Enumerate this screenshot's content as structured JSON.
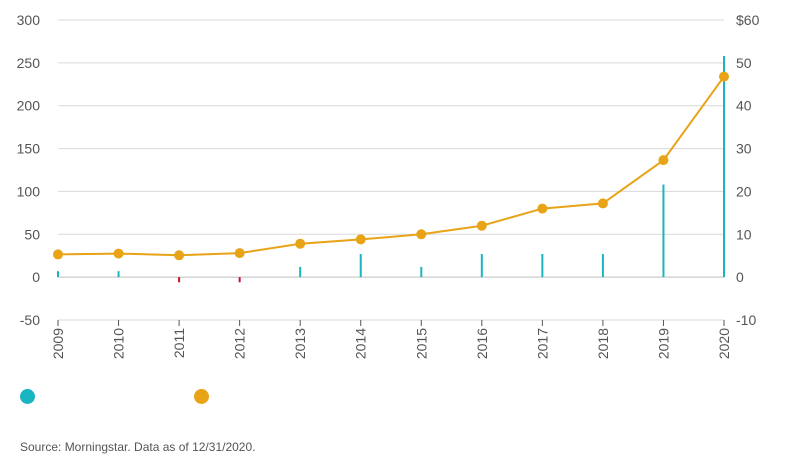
{
  "chart_data": {
    "type": "bar+line",
    "x": [
      "2009",
      "2010",
      "2011",
      "2012",
      "2013",
      "2014",
      "2015",
      "2016",
      "2017",
      "2018",
      "2019",
      "2020"
    ],
    "series": [
      {
        "name": "",
        "type": "bar",
        "axis": "left",
        "color": "#19b5c1",
        "negative_color": "#c8102e",
        "values": [
          7,
          7,
          -6,
          -6,
          12,
          27,
          12,
          27,
          27,
          27,
          108,
          258
        ]
      },
      {
        "name": "",
        "type": "line",
        "axis": "right",
        "color": "#e8a317",
        "values": [
          5.3,
          5.5,
          5.1,
          5.6,
          7.8,
          8.8,
          10.0,
          12.0,
          16.0,
          17.2,
          27.3,
          46.8
        ]
      }
    ],
    "yaxis_left": {
      "min": -50,
      "max": 300,
      "ticks": [
        -50,
        0,
        50,
        100,
        150,
        200,
        250,
        300
      ],
      "tick_labels": [
        "-50",
        "0",
        "50",
        "100",
        "150",
        "200",
        "250",
        "300"
      ]
    },
    "yaxis_right": {
      "min": -10,
      "max": 60,
      "ticks": [
        -10,
        0,
        10,
        20,
        30,
        40,
        50,
        60
      ],
      "tick_labels": [
        "-10",
        "0",
        "10",
        "20",
        "30",
        "40",
        "50",
        "$60"
      ]
    },
    "grid": true,
    "legend_placement": "bottom-left",
    "title": "",
    "xlabel": "",
    "ylabel": ""
  },
  "colors": {
    "grid": "#d9d9d9",
    "axis": "#555555",
    "text": "#555555"
  },
  "source": "Source: Morningstar. Data as of 12/31/2020."
}
